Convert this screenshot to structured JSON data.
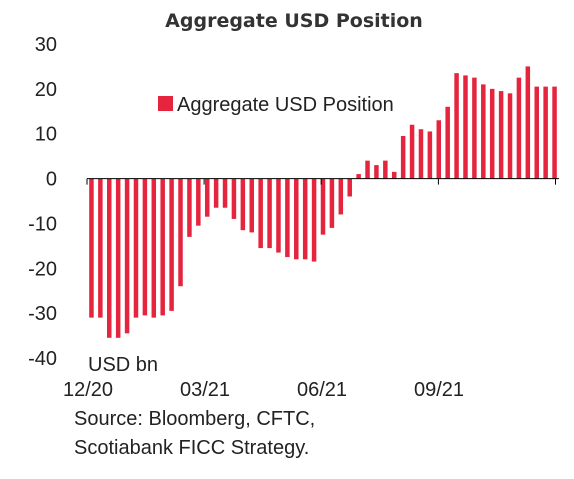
{
  "chart_data": {
    "type": "bar",
    "title": "Aggregate USD Position",
    "ylabel_unit": "USD bn",
    "ylim": [
      -40,
      30
    ],
    "yticks": [
      30,
      20,
      10,
      0,
      -10,
      -20,
      -30,
      -40
    ],
    "xtick_labels": [
      "12/20",
      "03/21",
      "06/21",
      "09/21"
    ],
    "legend": {
      "label": "Aggregate USD Position",
      "position": "top-right"
    },
    "bar_color": "#e4253d",
    "series": [
      {
        "name": "Aggregate USD Position",
        "values": [
          -31,
          -31,
          -35.5,
          -35.5,
          -34.5,
          -31,
          -30.5,
          -31,
          -30.5,
          -29.5,
          -24,
          -13,
          -10.5,
          -8.5,
          -6.5,
          -6.5,
          -9,
          -11.5,
          -12,
          -15.5,
          -15.5,
          -16.5,
          -17.5,
          -18,
          -18,
          -18.5,
          -12.5,
          -11,
          -8,
          -4,
          1,
          4,
          3,
          4,
          1.5,
          9.5,
          12,
          11,
          10.5,
          13,
          16,
          23.5,
          23,
          22.5,
          21,
          20,
          19.5,
          19,
          22.5,
          25,
          20.5,
          20.5,
          20.5
        ]
      }
    ]
  },
  "source": {
    "line1": "Source: Bloomberg, CFTC,",
    "line2": "Scotiabank FICC Strategy."
  }
}
